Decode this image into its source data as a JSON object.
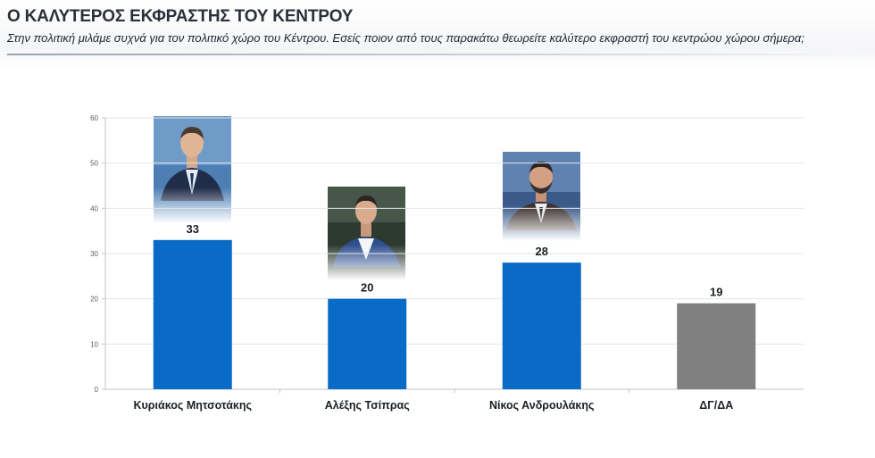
{
  "header": {
    "title": "Ο ΚΑΛΥΤΕΡΟΣ ΕΚΦΡΑΣΤΗΣ ΤΟΥ ΚΕΝΤΡΟΥ",
    "subtitle": "Στην πολιτική μιλάμε συχνά για τον πολιτικό χώρο του Κέντρου. Εσείς ποιον από τους παρακάτω θεωρείτε καλύτερο εκφραστή του κεντρώου χώρου σήμερα;"
  },
  "chart_data": {
    "type": "bar",
    "categories": [
      "Κυριάκος Μητσοτάκης",
      "Αλέξης Τσίπρας",
      "Νίκος Ανδρουλάκης",
      "ΔΓ/ΔΑ"
    ],
    "values": [
      33,
      20,
      28,
      19
    ],
    "data_labels": [
      "33",
      "20",
      "28",
      "19"
    ],
    "colors": [
      "#0a6ac7",
      "#0a6ac7",
      "#0a6ac7",
      "#808080"
    ],
    "ylim": [
      0,
      60
    ],
    "yticks": [
      0,
      10,
      20,
      30,
      40,
      50,
      60
    ],
    "ytick_labels": [
      "0",
      "10",
      "20",
      "30",
      "40",
      "50",
      "60"
    ],
    "grid": true,
    "legend": "none",
    "photos": [
      "man-in-navy-suit-photo",
      "man-in-white-shirt-photo",
      "bearded-man-photo",
      null
    ]
  }
}
